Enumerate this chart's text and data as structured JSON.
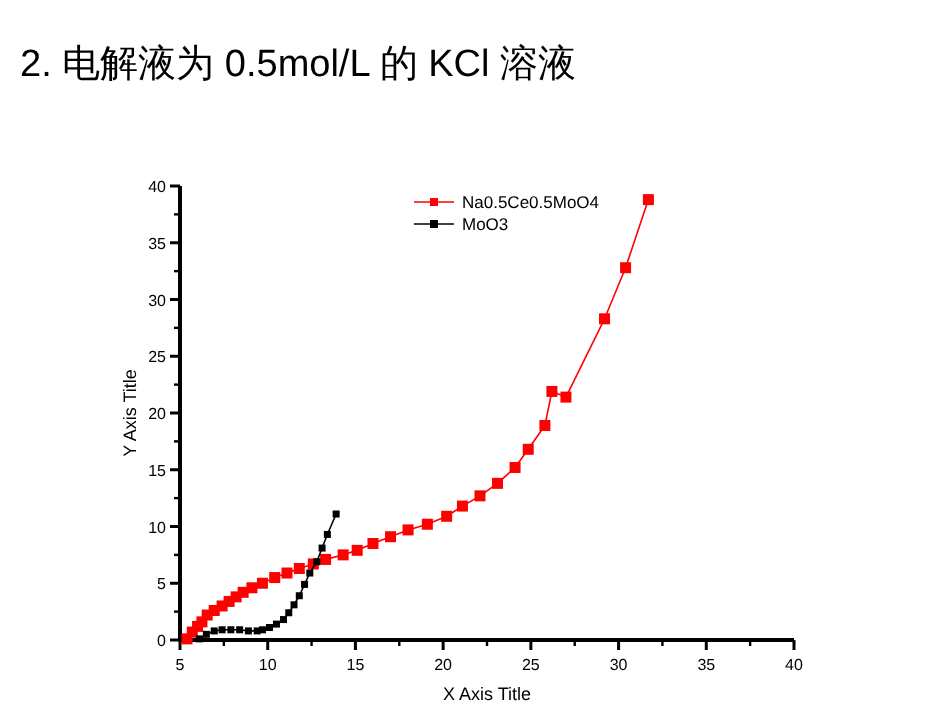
{
  "chart_data": {
    "type": "line",
    "title": "2. 电解液为 0.5mol/L 的 KCl 溶液",
    "xlabel": "X Axis Title",
    "ylabel": "Y Axis Title",
    "xlim": [
      5,
      40
    ],
    "ylim": [
      0,
      40
    ],
    "xticks": [
      5,
      10,
      15,
      20,
      25,
      30,
      35,
      40
    ],
    "yticks": [
      0,
      5,
      10,
      15,
      20,
      25,
      30,
      35,
      40
    ],
    "marker": "square",
    "line_style": "solid",
    "legend": "top right",
    "series": [
      {
        "name": "Na0.5Ce0.5MoO4",
        "color": "#ff0000",
        "x": [
          5.4,
          5.7,
          6.0,
          6.25,
          6.55,
          6.95,
          7.4,
          7.8,
          8.2,
          8.6,
          9.1,
          9.7,
          10.4,
          11.1,
          11.8,
          12.6,
          13.3,
          14.3,
          15.1,
          16.0,
          17.0,
          18.0,
          19.1,
          20.2,
          21.1,
          22.1,
          23.1,
          24.1,
          24.85,
          25.8,
          26.2,
          27.0,
          29.2,
          30.4,
          31.7
        ],
        "values": [
          0.1,
          0.7,
          1.2,
          1.6,
          2.2,
          2.6,
          3.0,
          3.4,
          3.8,
          4.2,
          4.6,
          5.0,
          5.5,
          5.9,
          6.3,
          6.7,
          7.1,
          7.5,
          7.9,
          8.5,
          9.1,
          9.7,
          10.2,
          10.9,
          11.8,
          12.7,
          13.8,
          15.2,
          16.8,
          18.9,
          21.9,
          21.4,
          28.3,
          32.8,
          38.8
        ]
      },
      {
        "name": "MoO3",
        "color": "#000000",
        "x": [
          6.1,
          6.5,
          6.95,
          7.4,
          7.9,
          8.4,
          8.9,
          9.4,
          9.7,
          10.1,
          10.5,
          10.9,
          11.2,
          11.5,
          11.8,
          12.1,
          12.4,
          12.8,
          13.1,
          13.4,
          13.9
        ],
        "values": [
          0.1,
          0.5,
          0.8,
          0.9,
          0.9,
          0.9,
          0.8,
          0.8,
          0.9,
          1.1,
          1.4,
          1.8,
          2.4,
          3.1,
          3.9,
          4.9,
          5.9,
          6.9,
          8.1,
          9.3,
          11.1
        ]
      }
    ]
  }
}
